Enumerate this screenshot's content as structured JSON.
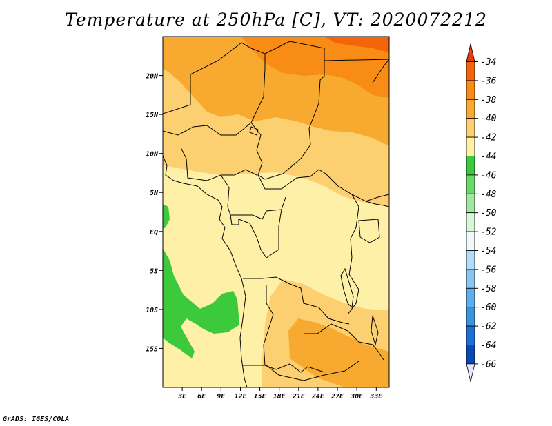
{
  "title": "Temperature at 250hPa [C], VT: 2020072212",
  "credit": "GrADS: IGES/COLA",
  "map": {
    "lat_ticks": [
      "20N",
      "15N",
      "10N",
      "5N",
      "EQ",
      "5S",
      "10S",
      "15S"
    ],
    "lon_ticks": [
      "3E",
      "6E",
      "9E",
      "12E",
      "15E",
      "18E",
      "21E",
      "24E",
      "27E",
      "30E",
      "33E"
    ],
    "lat_range": [
      -20,
      25
    ],
    "lon_range": [
      0,
      35
    ]
  },
  "colorbar": {
    "labels": [
      "-34",
      "-36",
      "-38",
      "-40",
      "-42",
      "-44",
      "-46",
      "-48",
      "-50",
      "-52",
      "-54",
      "-56",
      "-58",
      "-60",
      "-62",
      "-64",
      "-66"
    ],
    "colors": [
      "#f4640a",
      "#f88c14",
      "#f8aa30",
      "#fcd070",
      "#fff0a8",
      "#3cca3c",
      "#6ad86a",
      "#a0e8a0",
      "#d6f6d6",
      "#f0fafc",
      "#b4dcf8",
      "#8ac4f0",
      "#60acec",
      "#3c94e0",
      "#1c70d8",
      "#0c48b4",
      "#081278"
    ],
    "top_color": "#e83c0a",
    "bottom_color": "#e6e6fa"
  },
  "field_colors": {
    "t36": "#f88c14",
    "t38": "#f8aa30",
    "t40": "#fcd070",
    "t42": "#fff0a8",
    "t44": "#3cca3c",
    "t34": "#f4640a"
  }
}
